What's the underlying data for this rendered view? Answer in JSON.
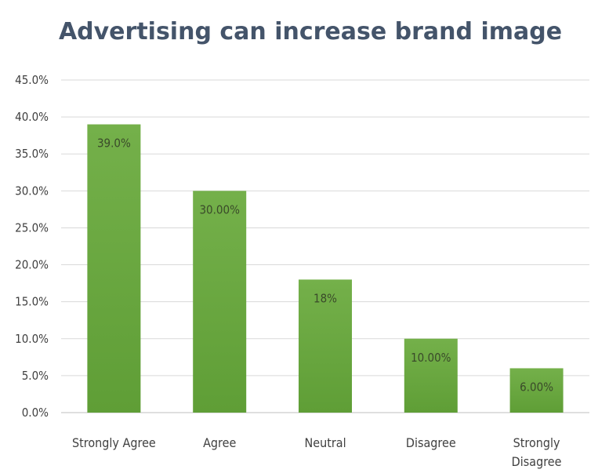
{
  "chart_data": {
    "type": "bar",
    "title": "Advertising can increase brand image",
    "categories": [
      "Strongly Agree",
      "Agree",
      "Neutral",
      "Disagree",
      "Strongly Disagree"
    ],
    "category_lines": [
      [
        "Strongly Agree"
      ],
      [
        "Agree"
      ],
      [
        "Neutral"
      ],
      [
        "Disagree"
      ],
      [
        "Strongly",
        "Disagree"
      ]
    ],
    "values": [
      39.0,
      30.0,
      18.0,
      10.0,
      6.0
    ],
    "data_labels": [
      "39.0%",
      "30.00%",
      "18%",
      "10.00%",
      "6.00%"
    ],
    "y_ticks": [
      "0.0%",
      "5.0%",
      "10.0%",
      "15.0%",
      "20.0%",
      "25.0%",
      "30.0%",
      "35.0%",
      "40.0%",
      "45.0%"
    ],
    "ylim": [
      0,
      45
    ],
    "grid": true,
    "legend": "none",
    "bar_color": "#70ad47"
  }
}
